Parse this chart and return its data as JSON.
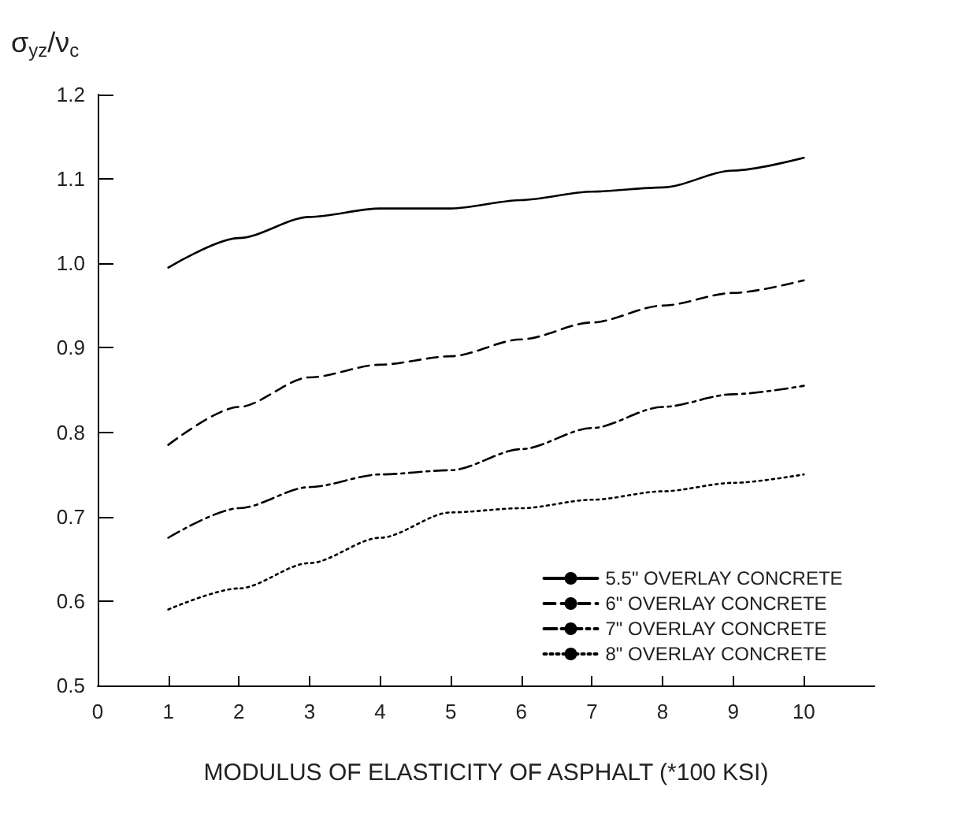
{
  "chart_data": {
    "type": "line",
    "xlabel": "MODULUS OF ELASTICITY OF ASPHALT (*100 KSI)",
    "ylabel": "σ$_{yz}$/ν$_{c}$",
    "x": [
      1,
      2,
      3,
      4,
      5,
      6,
      7,
      8,
      9,
      10
    ],
    "series": [
      {
        "name": "5.5\" OVERLAY CONCRETE",
        "color": "#000000",
        "line_style": "solid",
        "values": [
          0.995,
          1.03,
          1.055,
          1.065,
          1.065,
          1.075,
          1.085,
          1.09,
          1.11,
          1.125
        ]
      },
      {
        "name": "6\" OVERLAY CONCRETE",
        "color": "#000000",
        "line_style": "dashed",
        "values": [
          0.785,
          0.83,
          0.865,
          0.88,
          0.89,
          0.91,
          0.93,
          0.95,
          0.965,
          0.98
        ]
      },
      {
        "name": "7\" OVERLAY CONCRETE",
        "color": "#000000",
        "line_style": "dashdot",
        "values": [
          0.675,
          0.71,
          0.735,
          0.75,
          0.755,
          0.78,
          0.805,
          0.83,
          0.845,
          0.855
        ]
      },
      {
        "name": "8\" OVERLAY CONCRETE",
        "color": "#000000",
        "line_style": "dotted",
        "values": [
          0.59,
          0.615,
          0.645,
          0.675,
          0.705,
          0.71,
          0.72,
          0.73,
          0.74,
          0.75
        ]
      }
    ],
    "xlim": [
      0,
      11
    ],
    "xticks": [
      0,
      1,
      2,
      3,
      4,
      5,
      6,
      7,
      8,
      9,
      10
    ],
    "ylim": [
      0.5,
      1.2
    ],
    "yticks": [
      0.5,
      0.6,
      0.7,
      0.8,
      0.9,
      {
        "value": 1,
        "label": "1.0"
      },
      1.1,
      1.2
    ],
    "grid": false,
    "legend": "bottom right",
    "marker": "none"
  }
}
